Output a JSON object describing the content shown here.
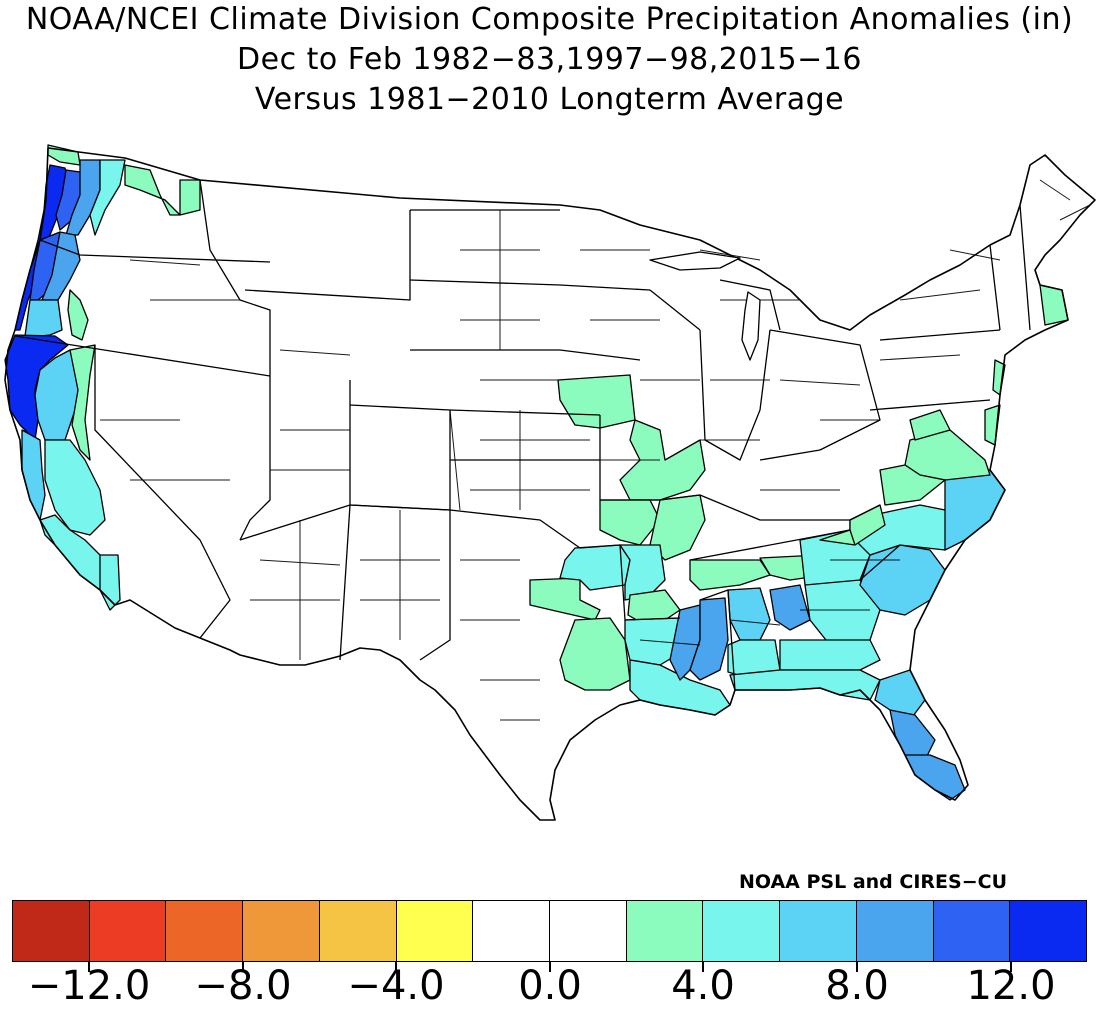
{
  "title": {
    "line1": "NOAA/NCEI Climate Division Composite Precipitation Anomalies (in)",
    "line2": "Dec to Feb  1982−83,1997−98,2015−16",
    "line3": "Versus 1981−2010 Longterm Average"
  },
  "credit": "NOAA PSL and CIRES−CU",
  "colorbar": {
    "colors": [
      "#c02818",
      "#ed3c24",
      "#ec6628",
      "#ef983a",
      "#f6c444",
      "#ffff50",
      "#ffffff",
      "#ffffff",
      "#8cfbbe",
      "#78f6ee",
      "#5cd2f4",
      "#4aa4ee",
      "#2e62f2",
      "#0a2af2"
    ],
    "tick_labels": [
      "−12.0",
      "−8.0",
      "−4.0",
      "0.0",
      "4.0",
      "8.0",
      "12.0"
    ]
  },
  "legend_colors": {
    "c1": "#8cfbbe",
    "c2": "#78f6ee",
    "c3": "#5cd2f4",
    "c4": "#4aa4ee",
    "c5": "#2e62f2",
    "c6": "#0a2af2"
  }
}
